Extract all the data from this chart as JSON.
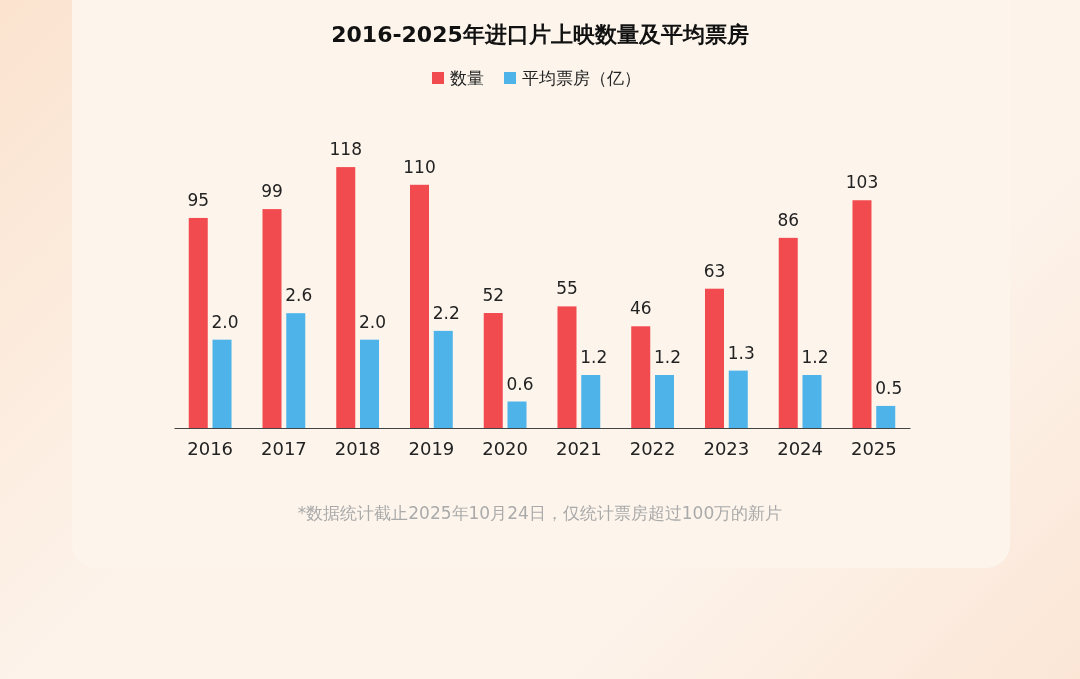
{
  "chart_data": {
    "type": "bar",
    "title": "2016-2025年进口片上映数量及平均票房",
    "categories": [
      "2016",
      "2017",
      "2018",
      "2019",
      "2020",
      "2021",
      "2022",
      "2023",
      "2024",
      "2025"
    ],
    "series": [
      {
        "name": "数量",
        "color": "#f24b4f",
        "values": [
          95,
          99,
          118,
          110,
          52,
          55,
          46,
          63,
          86,
          103
        ]
      },
      {
        "name": "平均票房（亿）",
        "color": "#4db3e9",
        "axis": "y2",
        "values": [
          2.0,
          2.6,
          2.0,
          2.2,
          0.6,
          1.2,
          1.2,
          1.3,
          1.2,
          0.5
        ],
        "value_labels": [
          "2.0",
          "2.6",
          "2.0",
          "2.2",
          "0.6",
          "1.2",
          "1.2",
          "1.3",
          "1.2",
          "0.5"
        ]
      }
    ],
    "tick_labels": "x",
    "data_labels": true,
    "legend": "top",
    "grid": false,
    "annotations": [
      "*数据统计截止2025年10月24日，仅统计票房超过100万的新片"
    ]
  }
}
